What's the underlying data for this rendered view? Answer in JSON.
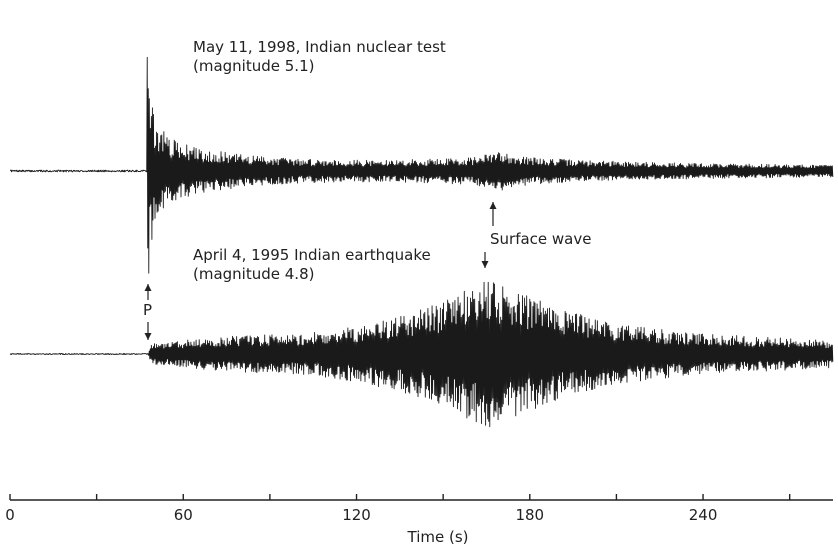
{
  "chart_data": {
    "type": "line",
    "title": "",
    "xlabel": "Time (s)",
    "ylabel": "",
    "xlim": [
      0,
      285
    ],
    "x_ticks_labeled": [
      0,
      60,
      120,
      180,
      240
    ],
    "x_ticks_minor": [
      30,
      90,
      150,
      210,
      270
    ],
    "grid": false,
    "legend": "none",
    "series": [
      {
        "label_line1": "May 11, 1998, Indian nuclear test",
        "label_line2": "(magnitude 5.1)",
        "onset_time": 47.5,
        "amplitude_envelope": [
          [
            0,
            0.01
          ],
          [
            47,
            0.01
          ],
          [
            47.5,
            1.0
          ],
          [
            48.5,
            0.55
          ],
          [
            50,
            0.35
          ],
          [
            55,
            0.22
          ],
          [
            65,
            0.15
          ],
          [
            80,
            0.11
          ],
          [
            100,
            0.08
          ],
          [
            130,
            0.07
          ],
          [
            160,
            0.09
          ],
          [
            170,
            0.13
          ],
          [
            180,
            0.09
          ],
          [
            200,
            0.07
          ],
          [
            240,
            0.05
          ],
          [
            285,
            0.04
          ]
        ]
      },
      {
        "label_line1": "April 4, 1995 Indian earthquake",
        "label_line2": "(magnitude 4.8)",
        "onset_time": 48,
        "amplitude_envelope": [
          [
            0,
            0.01
          ],
          [
            48,
            0.01
          ],
          [
            49,
            0.12
          ],
          [
            60,
            0.15
          ],
          [
            80,
            0.2
          ],
          [
            100,
            0.22
          ],
          [
            120,
            0.3
          ],
          [
            140,
            0.45
          ],
          [
            155,
            0.65
          ],
          [
            165,
            0.85
          ],
          [
            175,
            0.7
          ],
          [
            190,
            0.5
          ],
          [
            210,
            0.32
          ],
          [
            240,
            0.22
          ],
          [
            285,
            0.15
          ]
        ]
      }
    ],
    "annotations": {
      "p_wave_label": "P",
      "surface_wave_label": "Surface wave"
    }
  }
}
